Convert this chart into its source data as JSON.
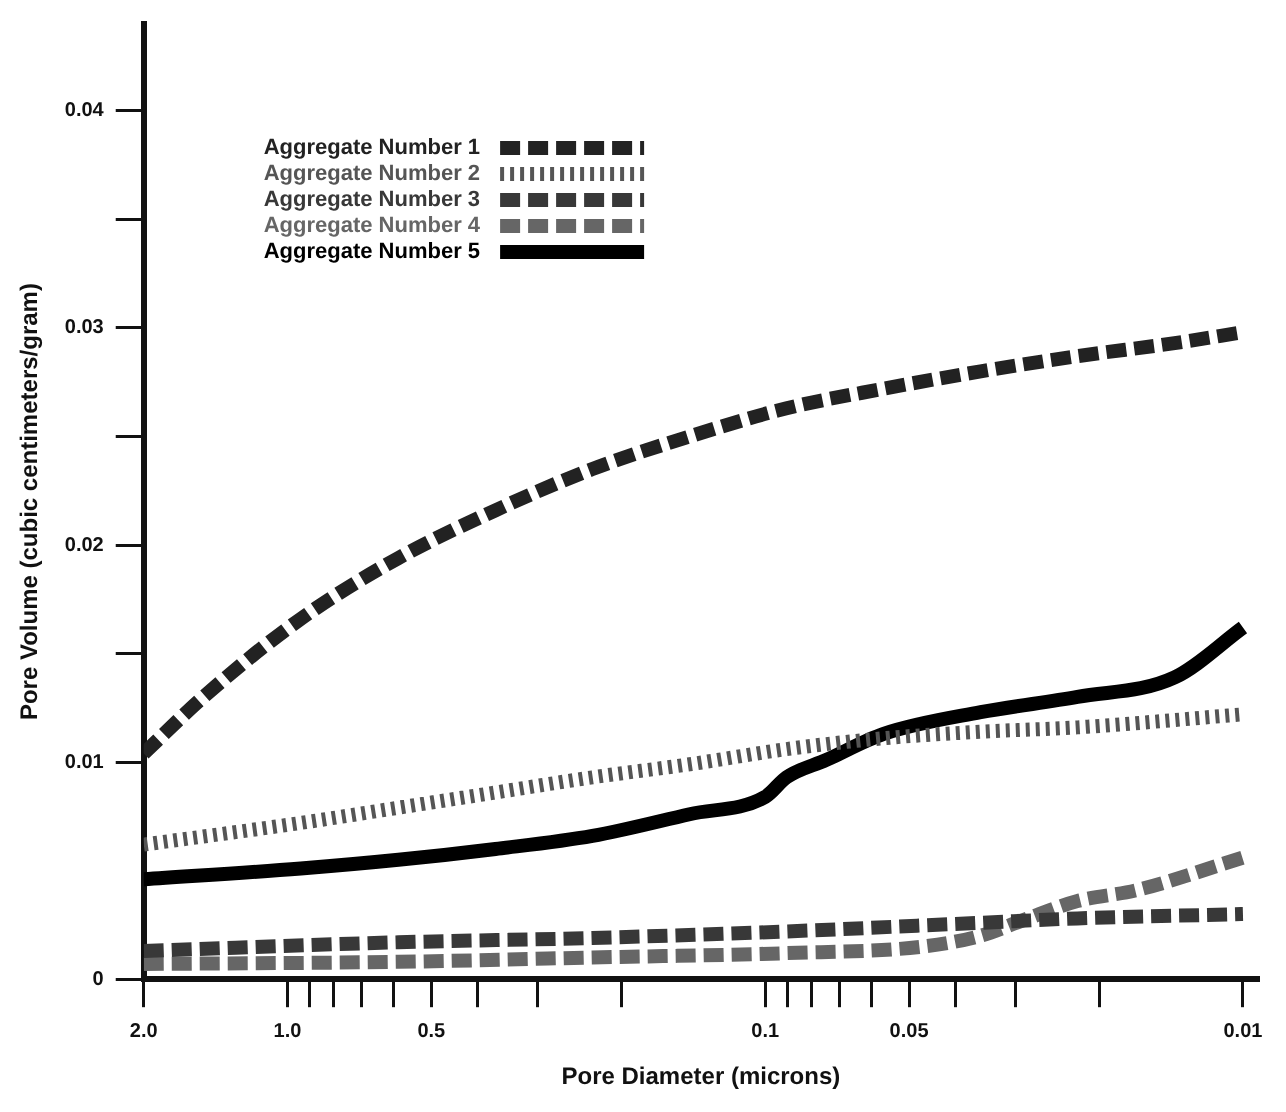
{
  "chart_data": {
    "type": "line",
    "xlabel": "Pore Diameter (microns)",
    "ylabel": "Pore Volume (cubic centimeters/gram)",
    "log": "x",
    "xlim": [
      2,
      0.0093
    ],
    "ylim": [
      0,
      0.044
    ],
    "xticks": [
      {
        "value": 2,
        "label": "2.0"
      },
      {
        "value": 1,
        "label": "1.0"
      },
      {
        "value": 0.9,
        "label": null
      },
      {
        "value": 0.8,
        "label": null
      },
      {
        "value": 0.7,
        "label": null
      },
      {
        "value": 0.6,
        "label": null
      },
      0.5,
      {
        "value": 0.4,
        "label": null
      },
      {
        "value": 0.3,
        "label": null
      },
      {
        "value": 0.2,
        "label": null
      },
      0.1,
      {
        "value": 0.09,
        "label": null
      },
      {
        "value": 0.08,
        "label": null
      },
      {
        "value": 0.07,
        "label": null
      },
      {
        "value": 0.06,
        "label": null
      },
      0.05,
      {
        "value": 0.04,
        "label": null
      },
      {
        "value": 0.03,
        "label": null
      },
      {
        "value": 0.02,
        "label": null
      },
      0.01
    ],
    "yticks": [
      0,
      0.01,
      {
        "value": 0.015,
        "label": null
      },
      0.02,
      {
        "value": 0.025,
        "label": null
      },
      0.03,
      {
        "value": 0.035,
        "label": null
      },
      0.04
    ],
    "grid": false,
    "legend": "top left",
    "marker": "none",
    "series": [
      {
        "name": "Aggregate Number 1",
        "color": "#222222",
        "line_style": "dashed",
        "x": [
          2,
          1.5,
          0.938,
          0.586,
          0.367,
          0.23,
          0.144,
          0.0902,
          0.0565,
          0.0354,
          0.0222,
          0.0139,
          0.01
        ],
        "values": [
          0.0104,
          0.013,
          0.0166,
          0.0194,
          0.0216,
          0.0235,
          0.025,
          0.0263,
          0.0272,
          0.028,
          0.0287,
          0.0293,
          0.0298
        ]
      },
      {
        "name": "Aggregate Number 2",
        "color": "#555555",
        "line_style": "dotted",
        "x": [
          2,
          0.938,
          0.586,
          0.367,
          0.23,
          0.144,
          0.0902,
          0.0565,
          0.0354,
          0.0222,
          0.01
        ],
        "values": [
          0.0062,
          0.0072,
          0.0079,
          0.0086,
          0.0093,
          0.0099,
          0.0106,
          0.0111,
          0.0114,
          0.0116,
          0.0122
        ]
      },
      {
        "name": "Aggregate Number 3",
        "color": "#383838",
        "line_style": "dashed",
        "x": [
          2,
          0.586,
          0.23,
          0.0902,
          0.0354,
          0.0222,
          0.01
        ],
        "values": [
          0.0013,
          0.0017,
          0.0019,
          0.0022,
          0.0026,
          0.0028,
          0.003
        ]
      },
      {
        "name": "Aggregate Number 4",
        "color": "#666666",
        "line_style": "dashed",
        "x": [
          2,
          0.586,
          0.23,
          0.0902,
          0.0469,
          0.0354,
          0.029,
          0.0222,
          0.0167,
          0.01
        ],
        "values": [
          0.0007,
          0.0008,
          0.001,
          0.0012,
          0.0015,
          0.002,
          0.0027,
          0.0036,
          0.0041,
          0.0056
        ]
      },
      {
        "name": "Aggregate Number 5",
        "color": "#000000",
        "line_style": "solid",
        "x": [
          2,
          0.938,
          0.586,
          0.367,
          0.23,
          0.144,
          0.1,
          0.0902,
          0.0745,
          0.0565,
          0.0354,
          0.0222,
          0.0139,
          0.01
        ],
        "values": [
          0.0046,
          0.0051,
          0.0055,
          0.006,
          0.0066,
          0.0076,
          0.0084,
          0.0093,
          0.0101,
          0.0113,
          0.0123,
          0.013,
          0.0139,
          0.0162
        ]
      }
    ]
  }
}
